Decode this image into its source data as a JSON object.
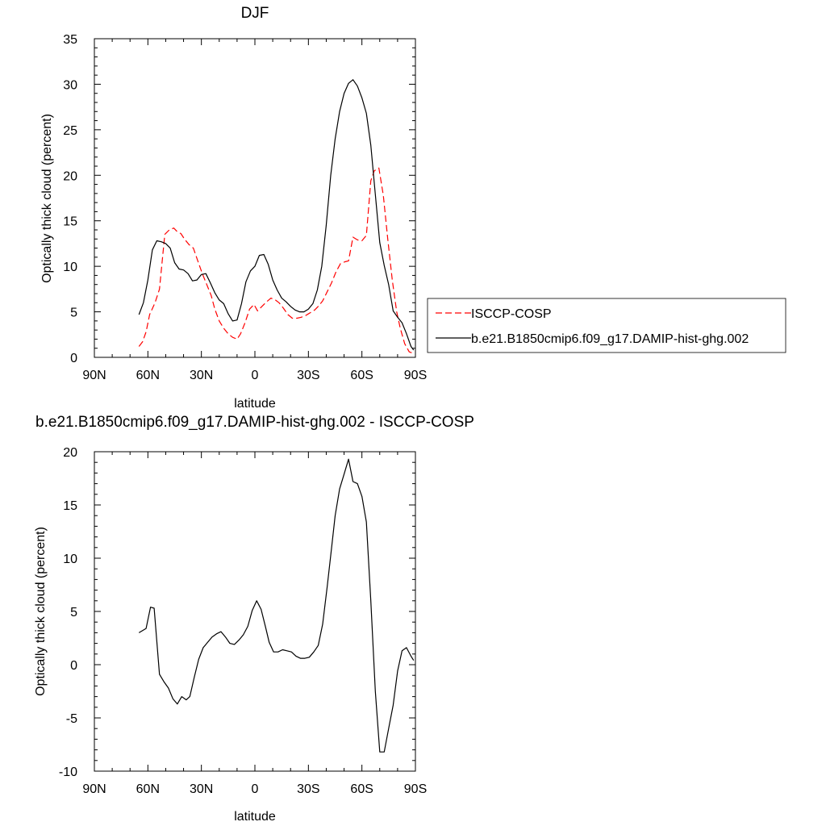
{
  "chart_data": [
    {
      "type": "line",
      "title": "DJF",
      "xlabel": "latitude",
      "ylabel": "Optically thick cloud (percent)",
      "xlim": [
        90,
        -90
      ],
      "ylim": [
        0,
        35
      ],
      "x_tick_values": [
        90,
        60,
        30,
        0,
        -30,
        -60,
        -90
      ],
      "x_tick_labels": [
        "90N",
        "60N",
        "30N",
        "0",
        "30S",
        "60S",
        "90S"
      ],
      "y_tick_values": [
        0,
        5,
        10,
        15,
        20,
        25,
        30,
        35
      ],
      "y_tick_labels": [
        "0",
        "5",
        "10",
        "15",
        "20",
        "25",
        "30",
        "35"
      ],
      "legend_position": "right",
      "grid": false,
      "series": [
        {
          "name": "ISCCP-COSP",
          "color": "#ff0000",
          "dash": "dashed",
          "x": [
            65,
            63,
            61,
            59,
            56,
            53.5,
            50.5,
            48,
            45.5,
            43.5,
            41.5,
            39.5,
            37,
            34.5,
            32,
            29.5,
            27,
            24.5,
            22.5,
            20,
            17.5,
            15,
            12.5,
            10,
            8,
            5.5,
            3,
            0.5,
            -1.5,
            -4,
            -6.5,
            -9,
            -11.5,
            -13.5,
            -16,
            -18.5,
            -21,
            -23.5,
            -26,
            -28.5,
            -31,
            -33.5,
            -35.5,
            -38,
            -40.5,
            -43,
            -45.5,
            -48,
            -50.5,
            -52.5,
            -55,
            -57.5,
            -60,
            -62.5,
            -65,
            -67,
            -69.5,
            -72,
            -74.5,
            -77,
            -79.5,
            -81.5,
            -84,
            -86.5,
            -88
          ],
          "values": [
            1.2,
            1.7,
            2.8,
            4.7,
            6.0,
            7.5,
            13.5,
            14.0,
            14.2,
            13.8,
            13.6,
            13.0,
            12.4,
            12.0,
            10.6,
            9.2,
            8.0,
            6.8,
            5.3,
            4.0,
            3.2,
            2.6,
            2.2,
            2.0,
            2.6,
            3.8,
            5.3,
            5.8,
            5.1,
            5.6,
            6.1,
            6.5,
            6.3,
            6.0,
            5.4,
            4.7,
            4.3,
            4.3,
            4.4,
            4.6,
            4.9,
            5.2,
            5.6,
            6.2,
            7.2,
            8.2,
            9.4,
            10.3,
            10.5,
            10.6,
            13.2,
            12.9,
            12.8,
            13.4,
            19.4,
            20.5,
            20.8,
            17.8,
            13.0,
            8.5,
            5.0,
            3.2,
            1.5,
            0.6,
            0.5
          ]
        },
        {
          "name": "b.e21.B1850cmip6.f09_g17.DAMIP-hist-ghg.002",
          "color": "#000000",
          "dash": "solid",
          "x": [
            65,
            62.5,
            60,
            57.5,
            55,
            52.5,
            50,
            47.5,
            45,
            42.5,
            40,
            37.5,
            35,
            32.5,
            30,
            27.5,
            25,
            22.5,
            20,
            17.5,
            15,
            12.5,
            10,
            7.5,
            5,
            2.5,
            0,
            -2.5,
            -5,
            -7.5,
            -10,
            -12.5,
            -15,
            -17.5,
            -20,
            -22.5,
            -25,
            -27.5,
            -30,
            -32.5,
            -35,
            -37.5,
            -40,
            -42.5,
            -45,
            -47.5,
            -50,
            -52.5,
            -55,
            -57.5,
            -60,
            -62.5,
            -65,
            -67.5,
            -70,
            -72.5,
            -75,
            -77.5,
            -80,
            -82.5,
            -85,
            -87.5,
            -89
          ],
          "values": [
            4.7,
            6.0,
            8.5,
            11.8,
            12.8,
            12.7,
            12.5,
            12.0,
            10.4,
            9.7,
            9.6,
            9.2,
            8.4,
            8.5,
            9.1,
            9.2,
            8.2,
            7.1,
            6.3,
            5.9,
            4.8,
            4.0,
            4.1,
            5.9,
            8.3,
            9.5,
            10.0,
            11.2,
            11.3,
            10.2,
            8.5,
            7.4,
            6.5,
            6.1,
            5.6,
            5.2,
            5.0,
            5.0,
            5.3,
            5.9,
            7.4,
            10.0,
            14.5,
            20.0,
            24.0,
            27.0,
            29.0,
            30.1,
            30.5,
            29.8,
            28.5,
            26.8,
            23.3,
            17.9,
            12.6,
            10.1,
            8.0,
            5.1,
            4.4,
            3.8,
            2.6,
            1.2,
            0.8
          ]
        }
      ]
    },
    {
      "type": "line",
      "title": "b.e21.B1850cmip6.f09_g17.DAMIP-hist-ghg.002 - ISCCP-COSP",
      "xlabel": "latitude",
      "ylabel": "Optically thick cloud (percent)",
      "xlim": [
        90,
        -90
      ],
      "ylim": [
        -10,
        20
      ],
      "x_tick_values": [
        90,
        60,
        30,
        0,
        -30,
        -60,
        -90
      ],
      "x_tick_labels": [
        "90N",
        "60N",
        "30N",
        "0",
        "30S",
        "60S",
        "90S"
      ],
      "y_tick_values": [
        -10,
        -5,
        0,
        5,
        10,
        15,
        20
      ],
      "y_tick_labels": [
        "-10",
        "-5",
        "0",
        "5",
        "10",
        "15",
        "20"
      ],
      "grid": false,
      "series": [
        {
          "color": "#000000",
          "x": [
            65,
            61,
            58.5,
            56.5,
            53.5,
            51,
            48.5,
            46,
            43.5,
            41,
            38.5,
            36.5,
            34,
            31.5,
            29,
            26.5,
            24,
            21.5,
            19,
            16.5,
            14,
            11.5,
            9,
            6.5,
            4,
            1.5,
            -1,
            -3.5,
            -6,
            -8,
            -10.5,
            -13,
            -15.5,
            -18,
            -20.5,
            -23,
            -25.5,
            -28,
            -30.5,
            -33,
            -35.5,
            -38,
            -40.5,
            -43,
            -45,
            -47.5,
            -50,
            -52.5,
            -55,
            -57.5,
            -60,
            -62.5,
            -65,
            -67.5,
            -70,
            -72.5,
            -75,
            -77.5,
            -80,
            -82.5,
            -85,
            -87.5,
            -89
          ],
          "values": [
            3.0,
            3.4,
            5.4,
            5.3,
            -0.9,
            -1.6,
            -2.2,
            -3.2,
            -3.7,
            -3.0,
            -3.3,
            -3.0,
            -1.2,
            0.5,
            1.6,
            2.1,
            2.6,
            2.9,
            3.1,
            2.6,
            2.0,
            1.9,
            2.3,
            2.8,
            3.6,
            5.1,
            6.0,
            5.2,
            3.5,
            2.1,
            1.2,
            1.2,
            1.4,
            1.3,
            1.2,
            0.8,
            0.6,
            0.6,
            0.7,
            1.2,
            1.8,
            3.8,
            7.3,
            11.0,
            14.0,
            16.5,
            17.9,
            19.3,
            17.2,
            17.0,
            15.8,
            13.4,
            6.0,
            -2.5,
            -8.2,
            -8.2,
            -6.0,
            -3.8,
            -0.6,
            1.3,
            1.6,
            0.8,
            0.4
          ]
        }
      ]
    }
  ]
}
